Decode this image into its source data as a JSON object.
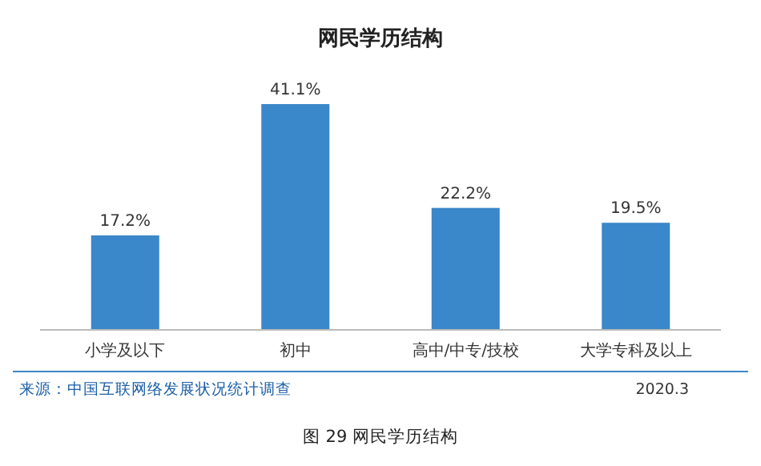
{
  "chart_data": {
    "type": "bar",
    "title": "网民学历结构",
    "categories": [
      "小学及以下",
      "初中",
      "高中/中专/技校",
      "大学专科及以上"
    ],
    "values": [
      17.2,
      41.1,
      22.2,
      19.5
    ],
    "value_labels": [
      "17.2%",
      "41.1%",
      "22.2%",
      "19.5%"
    ],
    "color": "#3a87c9",
    "annotations": [
      "来源：中国互联网络发展状况统计调查",
      "2020.3",
      "图 29   网民学历结构"
    ]
  }
}
